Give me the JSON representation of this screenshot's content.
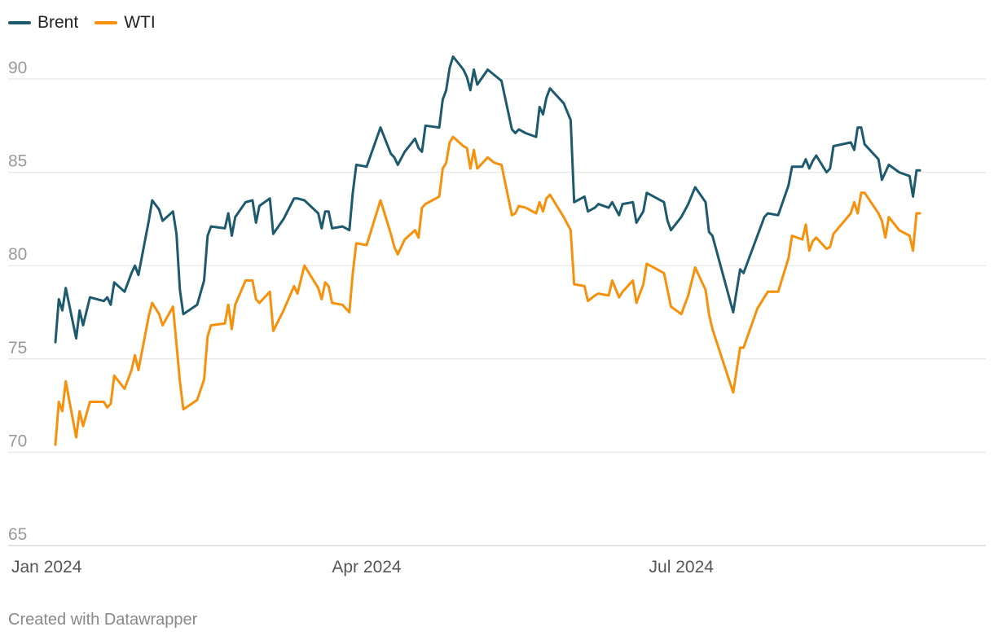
{
  "legend": [
    {
      "name": "Brent",
      "color": "#1d5a6e"
    },
    {
      "name": "WTI",
      "color": "#f7900a"
    }
  ],
  "footer": "Created with Datawrapper",
  "chart_data": {
    "type": "line",
    "title": "",
    "xlabel": "",
    "ylabel": "",
    "ylim": [
      65,
      92
    ],
    "xlim": [
      "2024-01-02",
      "2024-09-13"
    ],
    "y_ticks": [
      65,
      70,
      75,
      80,
      85,
      90
    ],
    "x_ticks": [
      {
        "date": "2024-01-02",
        "label": "Jan 2024"
      },
      {
        "date": "2024-04-01",
        "label": "Apr 2024"
      },
      {
        "date": "2024-07-01",
        "label": "Jul 2024"
      }
    ],
    "grid": "horizontal",
    "legend_position": "top-left",
    "series": [
      {
        "name": "Brent",
        "color": "#1d5a6e",
        "points": [
          [
            "2024-01-02",
            75.9
          ],
          [
            "2024-01-03",
            78.2
          ],
          [
            "2024-01-04",
            77.6
          ],
          [
            "2024-01-05",
            78.8
          ],
          [
            "2024-01-08",
            76.1
          ],
          [
            "2024-01-09",
            77.6
          ],
          [
            "2024-01-10",
            76.8
          ],
          [
            "2024-01-12",
            78.3
          ],
          [
            "2024-01-16",
            78.1
          ],
          [
            "2024-01-17",
            78.3
          ],
          [
            "2024-01-18",
            77.9
          ],
          [
            "2024-01-19",
            79.1
          ],
          [
            "2024-01-22",
            78.6
          ],
          [
            "2024-01-24",
            79.6
          ],
          [
            "2024-01-25",
            80.0
          ],
          [
            "2024-01-26",
            79.5
          ],
          [
            "2024-01-29",
            82.4
          ],
          [
            "2024-01-30",
            83.5
          ],
          [
            "2024-02-01",
            83.0
          ],
          [
            "2024-02-02",
            82.4
          ],
          [
            "2024-02-05",
            82.9
          ],
          [
            "2024-02-06",
            81.7
          ],
          [
            "2024-02-07",
            78.7
          ],
          [
            "2024-02-08",
            77.4
          ],
          [
            "2024-02-12",
            77.9
          ],
          [
            "2024-02-14",
            79.2
          ],
          [
            "2024-02-15",
            81.6
          ],
          [
            "2024-02-16",
            82.1
          ],
          [
            "2024-02-20",
            82.0
          ],
          [
            "2024-02-21",
            82.8
          ],
          [
            "2024-02-22",
            81.6
          ],
          [
            "2024-02-23",
            82.6
          ],
          [
            "2024-02-26",
            83.4
          ],
          [
            "2024-02-28",
            83.5
          ],
          [
            "2024-02-29",
            82.3
          ],
          [
            "2024-03-01",
            83.2
          ],
          [
            "2024-03-04",
            83.6
          ],
          [
            "2024-03-05",
            81.7
          ],
          [
            "2024-03-08",
            82.5
          ],
          [
            "2024-03-11",
            83.6
          ],
          [
            "2024-03-12",
            83.6
          ],
          [
            "2024-03-14",
            83.5
          ],
          [
            "2024-03-18",
            82.8
          ],
          [
            "2024-03-19",
            82.0
          ],
          [
            "2024-03-20",
            82.9
          ],
          [
            "2024-03-21",
            82.9
          ],
          [
            "2024-03-22",
            82.0
          ],
          [
            "2024-03-25",
            82.1
          ],
          [
            "2024-03-27",
            81.9
          ],
          [
            "2024-03-28",
            83.9
          ],
          [
            "2024-03-29",
            85.4
          ],
          [
            "2024-04-01",
            85.3
          ],
          [
            "2024-04-05",
            87.4
          ],
          [
            "2024-04-08",
            86.0
          ],
          [
            "2024-04-09",
            85.8
          ],
          [
            "2024-04-10",
            85.4
          ],
          [
            "2024-04-12",
            86.1
          ],
          [
            "2024-04-15",
            86.8
          ],
          [
            "2024-04-16",
            86.3
          ],
          [
            "2024-04-17",
            86.1
          ],
          [
            "2024-04-18",
            87.5
          ],
          [
            "2024-04-22",
            87.4
          ],
          [
            "2024-04-23",
            88.9
          ],
          [
            "2024-04-24",
            89.4
          ],
          [
            "2024-04-25",
            90.6
          ],
          [
            "2024-04-26",
            91.2
          ],
          [
            "2024-04-29",
            90.5
          ],
          [
            "2024-04-30",
            90.1
          ],
          [
            "2024-05-01",
            89.4
          ],
          [
            "2024-05-02",
            90.5
          ],
          [
            "2024-05-03",
            89.7
          ],
          [
            "2024-05-06",
            90.5
          ],
          [
            "2024-05-08",
            90.2
          ],
          [
            "2024-05-10",
            89.9
          ],
          [
            "2024-05-13",
            87.3
          ],
          [
            "2024-05-14",
            87.1
          ],
          [
            "2024-05-15",
            87.3
          ],
          [
            "2024-05-17",
            87.1
          ],
          [
            "2024-05-20",
            86.9
          ],
          [
            "2024-05-21",
            88.5
          ],
          [
            "2024-05-22",
            88.1
          ],
          [
            "2024-05-23",
            89.0
          ],
          [
            "2024-05-24",
            89.5
          ],
          [
            "2024-05-28",
            88.7
          ],
          [
            "2024-05-30",
            87.8
          ],
          [
            "2024-05-31",
            83.4
          ],
          [
            "2024-06-03",
            83.7
          ],
          [
            "2024-06-04",
            82.9
          ],
          [
            "2024-06-06",
            83.1
          ],
          [
            "2024-06-07",
            83.3
          ],
          [
            "2024-06-10",
            83.1
          ],
          [
            "2024-06-11",
            83.4
          ],
          [
            "2024-06-13",
            82.7
          ],
          [
            "2024-06-14",
            83.3
          ],
          [
            "2024-06-17",
            83.4
          ],
          [
            "2024-06-18",
            82.3
          ],
          [
            "2024-06-20",
            82.9
          ],
          [
            "2024-06-21",
            83.9
          ],
          [
            "2024-06-24",
            83.6
          ],
          [
            "2024-06-26",
            83.4
          ],
          [
            "2024-06-27",
            82.4
          ],
          [
            "2024-06-28",
            81.9
          ],
          [
            "2024-07-01",
            82.6
          ],
          [
            "2024-07-03",
            83.3
          ],
          [
            "2024-07-05",
            84.2
          ],
          [
            "2024-07-08",
            83.4
          ],
          [
            "2024-07-09",
            81.8
          ],
          [
            "2024-07-10",
            81.6
          ],
          [
            "2024-07-16",
            77.5
          ],
          [
            "2024-07-18",
            79.8
          ],
          [
            "2024-07-19",
            79.6
          ],
          [
            "2024-07-23",
            81.6
          ],
          [
            "2024-07-25",
            82.6
          ],
          [
            "2024-07-26",
            82.8
          ],
          [
            "2024-07-29",
            82.7
          ],
          [
            "2024-08-01",
            84.3
          ],
          [
            "2024-08-02",
            85.3
          ],
          [
            "2024-08-05",
            85.3
          ],
          [
            "2024-08-06",
            85.7
          ],
          [
            "2024-08-07",
            85.2
          ],
          [
            "2024-08-08",
            85.6
          ],
          [
            "2024-08-09",
            85.9
          ],
          [
            "2024-08-12",
            85.0
          ],
          [
            "2024-08-13",
            85.2
          ],
          [
            "2024-08-14",
            86.4
          ],
          [
            "2024-08-19",
            86.6
          ],
          [
            "2024-08-20",
            86.2
          ],
          [
            "2024-08-21",
            87.4
          ],
          [
            "2024-08-22",
            87.4
          ],
          [
            "2024-08-23",
            86.5
          ],
          [
            "2024-08-27",
            85.7
          ],
          [
            "2024-08-28",
            84.6
          ],
          [
            "2024-08-29",
            85.0
          ],
          [
            "2024-08-30",
            85.4
          ],
          [
            "2024-09-02",
            85.0
          ],
          [
            "2024-09-05",
            84.8
          ],
          [
            "2024-09-06",
            83.7
          ],
          [
            "2024-09-07",
            85.1
          ],
          [
            "2024-09-08",
            85.1
          ]
        ]
      },
      {
        "name": "WTI",
        "color": "#f7900a",
        "points": [
          [
            "2024-01-02",
            70.4
          ],
          [
            "2024-01-03",
            72.7
          ],
          [
            "2024-01-04",
            72.2
          ],
          [
            "2024-01-05",
            73.8
          ],
          [
            "2024-01-08",
            70.8
          ],
          [
            "2024-01-09",
            72.2
          ],
          [
            "2024-01-10",
            71.4
          ],
          [
            "2024-01-12",
            72.7
          ],
          [
            "2024-01-16",
            72.7
          ],
          [
            "2024-01-17",
            72.4
          ],
          [
            "2024-01-18",
            72.6
          ],
          [
            "2024-01-19",
            74.1
          ],
          [
            "2024-01-22",
            73.4
          ],
          [
            "2024-01-24",
            74.4
          ],
          [
            "2024-01-25",
            75.2
          ],
          [
            "2024-01-26",
            74.4
          ],
          [
            "2024-01-29",
            77.3
          ],
          [
            "2024-01-30",
            78.0
          ],
          [
            "2024-02-01",
            77.4
          ],
          [
            "2024-02-02",
            76.8
          ],
          [
            "2024-02-05",
            77.8
          ],
          [
            "2024-02-06",
            75.8
          ],
          [
            "2024-02-07",
            73.8
          ],
          [
            "2024-02-08",
            72.3
          ],
          [
            "2024-02-12",
            72.8
          ],
          [
            "2024-02-14",
            73.9
          ],
          [
            "2024-02-15",
            76.2
          ],
          [
            "2024-02-16",
            76.8
          ],
          [
            "2024-02-20",
            76.9
          ],
          [
            "2024-02-21",
            77.9
          ],
          [
            "2024-02-22",
            76.6
          ],
          [
            "2024-02-23",
            77.9
          ],
          [
            "2024-02-26",
            79.2
          ],
          [
            "2024-02-28",
            79.2
          ],
          [
            "2024-02-29",
            78.2
          ],
          [
            "2024-03-01",
            78.0
          ],
          [
            "2024-03-04",
            78.6
          ],
          [
            "2024-03-05",
            76.5
          ],
          [
            "2024-03-08",
            77.6
          ],
          [
            "2024-03-11",
            78.9
          ],
          [
            "2024-03-12",
            78.5
          ],
          [
            "2024-03-14",
            80.0
          ],
          [
            "2024-03-18",
            78.8
          ],
          [
            "2024-03-19",
            78.2
          ],
          [
            "2024-03-20",
            79.1
          ],
          [
            "2024-03-21",
            78.9
          ],
          [
            "2024-03-22",
            78.0
          ],
          [
            "2024-03-25",
            77.9
          ],
          [
            "2024-03-27",
            77.5
          ],
          [
            "2024-03-28",
            79.6
          ],
          [
            "2024-03-29",
            81.2
          ],
          [
            "2024-04-01",
            81.1
          ],
          [
            "2024-04-05",
            83.5
          ],
          [
            "2024-04-08",
            81.7
          ],
          [
            "2024-04-09",
            81.0
          ],
          [
            "2024-04-10",
            80.6
          ],
          [
            "2024-04-12",
            81.4
          ],
          [
            "2024-04-15",
            81.9
          ],
          [
            "2024-04-16",
            81.5
          ],
          [
            "2024-04-17",
            83.1
          ],
          [
            "2024-04-18",
            83.3
          ],
          [
            "2024-04-22",
            83.7
          ],
          [
            "2024-04-23",
            85.2
          ],
          [
            "2024-04-24",
            85.5
          ],
          [
            "2024-04-25",
            86.6
          ],
          [
            "2024-04-26",
            86.9
          ],
          [
            "2024-04-29",
            86.4
          ],
          [
            "2024-04-30",
            86.3
          ],
          [
            "2024-05-01",
            85.2
          ],
          [
            "2024-05-02",
            86.2
          ],
          [
            "2024-05-03",
            85.2
          ],
          [
            "2024-05-06",
            85.8
          ],
          [
            "2024-05-08",
            85.5
          ],
          [
            "2024-05-10",
            85.4
          ],
          [
            "2024-05-13",
            82.7
          ],
          [
            "2024-05-14",
            82.8
          ],
          [
            "2024-05-15",
            83.2
          ],
          [
            "2024-05-17",
            83.1
          ],
          [
            "2024-05-20",
            82.8
          ],
          [
            "2024-05-21",
            83.4
          ],
          [
            "2024-05-22",
            82.9
          ],
          [
            "2024-05-23",
            83.6
          ],
          [
            "2024-05-24",
            83.8
          ],
          [
            "2024-05-28",
            82.6
          ],
          [
            "2024-05-30",
            81.9
          ],
          [
            "2024-05-31",
            79.0
          ],
          [
            "2024-06-03",
            78.9
          ],
          [
            "2024-06-04",
            78.1
          ],
          [
            "2024-06-06",
            78.4
          ],
          [
            "2024-06-07",
            78.5
          ],
          [
            "2024-06-10",
            78.4
          ],
          [
            "2024-06-11",
            79.2
          ],
          [
            "2024-06-13",
            78.3
          ],
          [
            "2024-06-14",
            78.6
          ],
          [
            "2024-06-17",
            79.2
          ],
          [
            "2024-06-18",
            78.0
          ],
          [
            "2024-06-20",
            79.0
          ],
          [
            "2024-06-21",
            80.1
          ],
          [
            "2024-06-24",
            79.8
          ],
          [
            "2024-06-26",
            79.6
          ],
          [
            "2024-06-27",
            78.7
          ],
          [
            "2024-06-28",
            77.8
          ],
          [
            "2024-07-01",
            77.4
          ],
          [
            "2024-07-03",
            78.4
          ],
          [
            "2024-07-05",
            79.9
          ],
          [
            "2024-07-08",
            78.7
          ],
          [
            "2024-07-09",
            77.4
          ],
          [
            "2024-07-10",
            76.6
          ],
          [
            "2024-07-16",
            73.2
          ],
          [
            "2024-07-18",
            75.6
          ],
          [
            "2024-07-19",
            75.6
          ],
          [
            "2024-07-23",
            77.7
          ],
          [
            "2024-07-25",
            78.3
          ],
          [
            "2024-07-26",
            78.6
          ],
          [
            "2024-07-29",
            78.6
          ],
          [
            "2024-08-01",
            80.4
          ],
          [
            "2024-08-02",
            81.6
          ],
          [
            "2024-08-05",
            81.4
          ],
          [
            "2024-08-06",
            82.2
          ],
          [
            "2024-08-07",
            80.8
          ],
          [
            "2024-08-08",
            81.3
          ],
          [
            "2024-08-09",
            81.5
          ],
          [
            "2024-08-12",
            80.9
          ],
          [
            "2024-08-13",
            81.0
          ],
          [
            "2024-08-14",
            81.7
          ],
          [
            "2024-08-19",
            82.8
          ],
          [
            "2024-08-20",
            83.4
          ],
          [
            "2024-08-21",
            82.8
          ],
          [
            "2024-08-22",
            83.9
          ],
          [
            "2024-08-23",
            83.9
          ],
          [
            "2024-08-27",
            82.8
          ],
          [
            "2024-08-28",
            82.4
          ],
          [
            "2024-08-29",
            81.5
          ],
          [
            "2024-08-30",
            82.6
          ],
          [
            "2024-09-02",
            81.9
          ],
          [
            "2024-09-05",
            81.6
          ],
          [
            "2024-09-06",
            80.8
          ],
          [
            "2024-09-07",
            82.8
          ],
          [
            "2024-09-08",
            82.8
          ]
        ]
      }
    ]
  }
}
